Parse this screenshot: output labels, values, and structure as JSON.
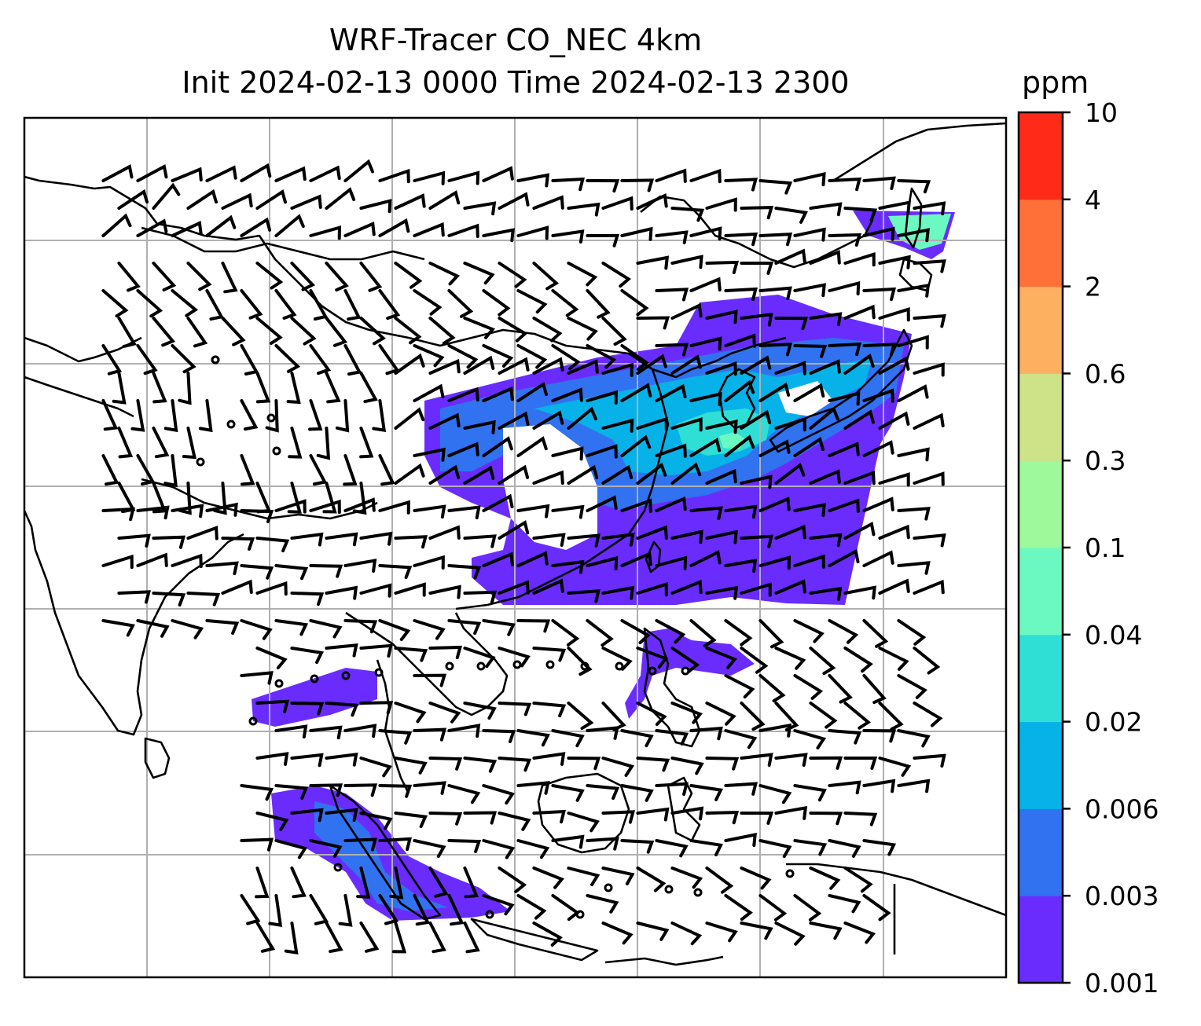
{
  "figure": {
    "title_line1": "WRF-Tracer CO_NEC 4km",
    "title_line2": "Init 2024-02-13 0000 Time 2024-02-13 2300"
  },
  "colorbar": {
    "unit": "ppm",
    "ticks": [
      "0.001",
      "0.003",
      "0.006",
      "0.02",
      "0.04",
      "0.1",
      "0.3",
      "0.6",
      "2",
      "4",
      "10"
    ],
    "colors": [
      "#6a2cfd",
      "#3172f0",
      "#07b2e8",
      "#2fdfd5",
      "#6cf9c1",
      "#9df99a",
      "#cee288",
      "#fcb060",
      "#ff7038",
      "#ff2b18"
    ]
  },
  "map": {
    "coastline_color": "#000000",
    "gridline_color": "#b0b0b0",
    "plume_colors": {
      "low": "#6a2cfd",
      "mid": "#3172f0",
      "high": "#07b2e8",
      "peak": "#2fdfd5",
      "max": "#6cf9c1"
    }
  }
}
